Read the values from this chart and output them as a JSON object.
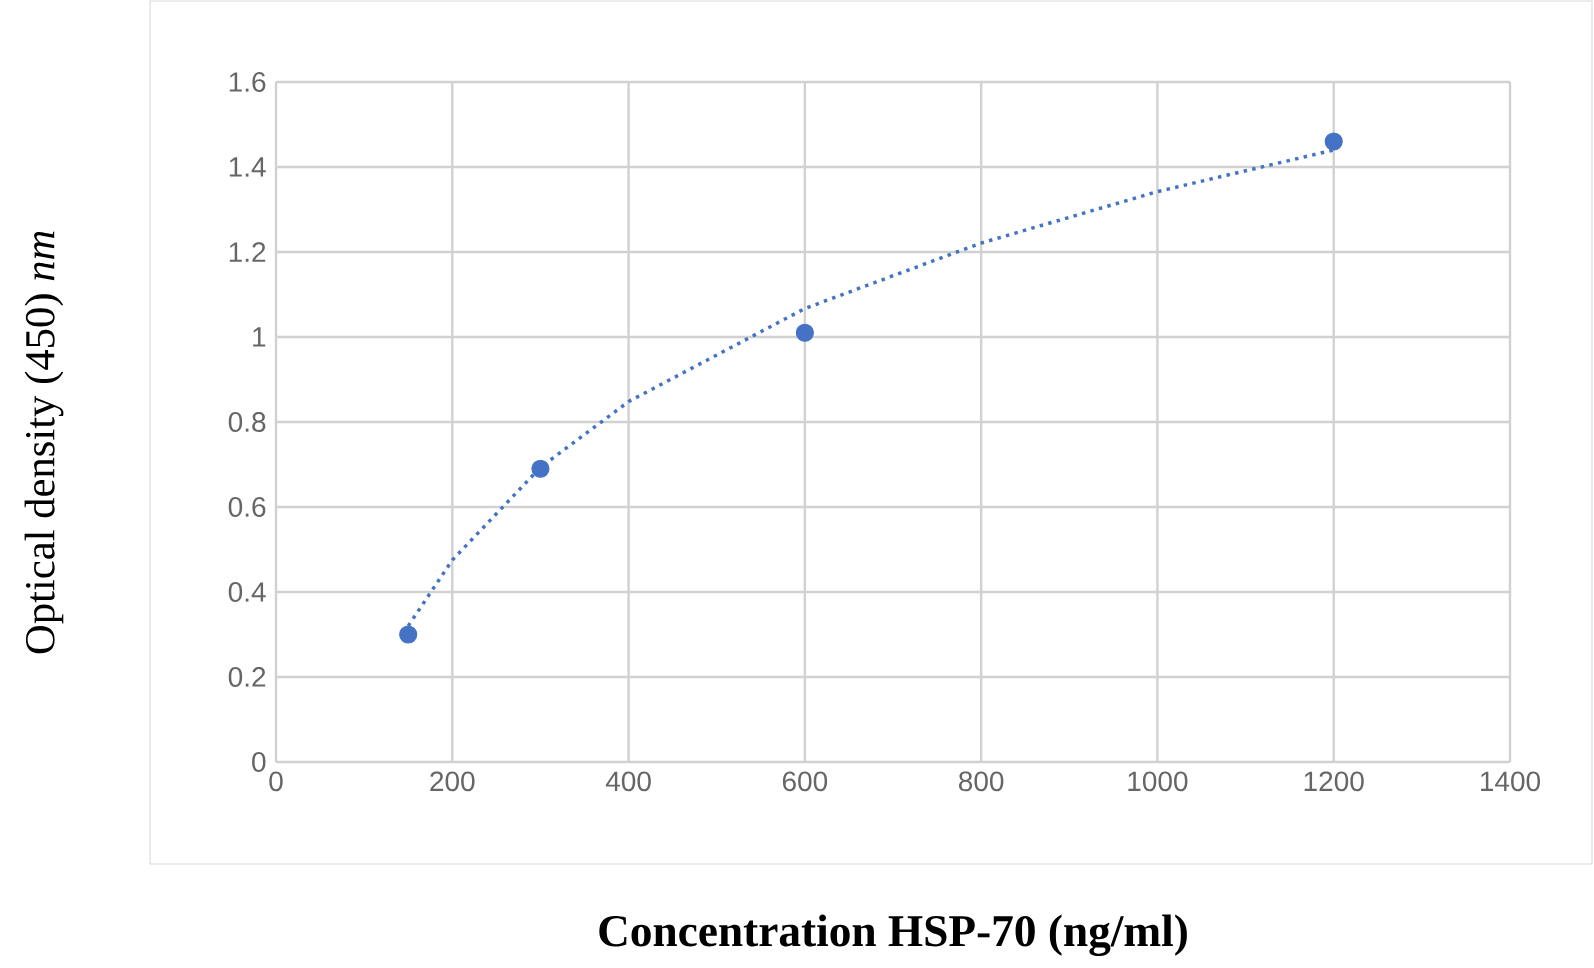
{
  "chart_data": {
    "type": "scatter",
    "xlabel": "Concentration HSP-70 (ng/ml)",
    "ylabel": "Optical density (450) *nm*",
    "xlim": [
      0,
      1400
    ],
    "xticks": [
      0,
      200,
      400,
      600,
      800,
      1000,
      1200,
      1400
    ],
    "ylim": [
      0,
      1.6
    ],
    "yticks": [
      0,
      0.2,
      0.4,
      0.6,
      0.8,
      1,
      1.2,
      1.4,
      1.6
    ],
    "grid": true,
    "series": [
      {
        "color": "#4472c4",
        "marker": "circle",
        "x": [
          150,
          300,
          600,
          1200
        ],
        "values": [
          0.3,
          0.69,
          1.01,
          1.46
        ]
      },
      {
        "type": "line",
        "color": "#4472c4",
        "marker": "none",
        "line_style": "dotted",
        "x": [
          150,
          200,
          300,
          400,
          600,
          800,
          1000,
          1200
        ],
        "values": [
          0.32,
          0.475,
          0.693,
          0.848,
          1.067,
          1.221,
          1.342,
          1.44
        ]
      }
    ]
  }
}
